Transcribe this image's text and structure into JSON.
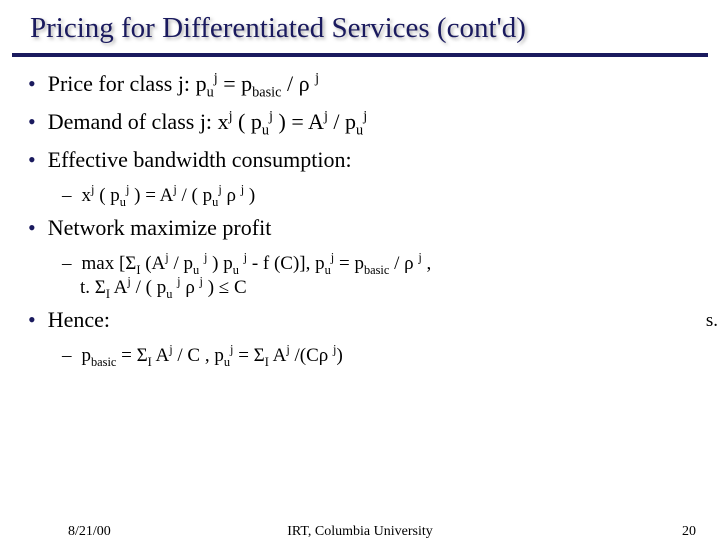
{
  "title": "Pricing for Differentiated Services  (cont'd)",
  "bullets": {
    "b1_label": "Price for class j:",
    "b1_math": " p<sub>u</sub><sup>j</sup> = p<sub>basic</sub> / ρ <sup>j</sup>",
    "b2_label": "Demand of class j:",
    "b2_math": " x<sup>j</sup> ( p<sub>u</sub><sup>j</sup> ) = A<sup>j</sup> / p<sub>u</sub><sup>j</sup>",
    "b3_label": "Effective bandwidth consumption:",
    "b3_sub": "x<sup>j</sup> ( p<sub>u</sub><sup>j</sup> ) = A<sup>j</sup> / ( p<sub>u</sub><sup>j</sup>  ρ <sup>j</sup> )",
    "b4_label": "Network maximize profit",
    "b4_sub1": "max  [Σ<sub>I</sub> (A<sup>j</sup> / p<sub>u</sub> <sup>j</sup> ) p<sub>u</sub> <sup>j</sup> - f (C)],   p<sub>u</sub><sup>j</sup> = p<sub>basic</sub> / ρ <sup>j</sup> ,",
    "b4_sub2": "t. Σ<sub>I</sub> A<sup>j</sup> / ( p<sub>u</sub> <sup>j</sup>  ρ <sup>j</sup> ) ≤ C",
    "b5_label": "Hence:",
    "b5_sub": "p<sub>basic</sub> = Σ<sub>I</sub> A<sup>j</sup> / C ,   p<sub>u</sub><sup>j</sup> = Σ<sub>I</sub> A<sup>j</sup> /(Cρ <sup>j</sup>)"
  },
  "side_text": "s.",
  "footer": {
    "date": "8/21/00",
    "center": "IRT, Columbia University",
    "page": "20"
  }
}
